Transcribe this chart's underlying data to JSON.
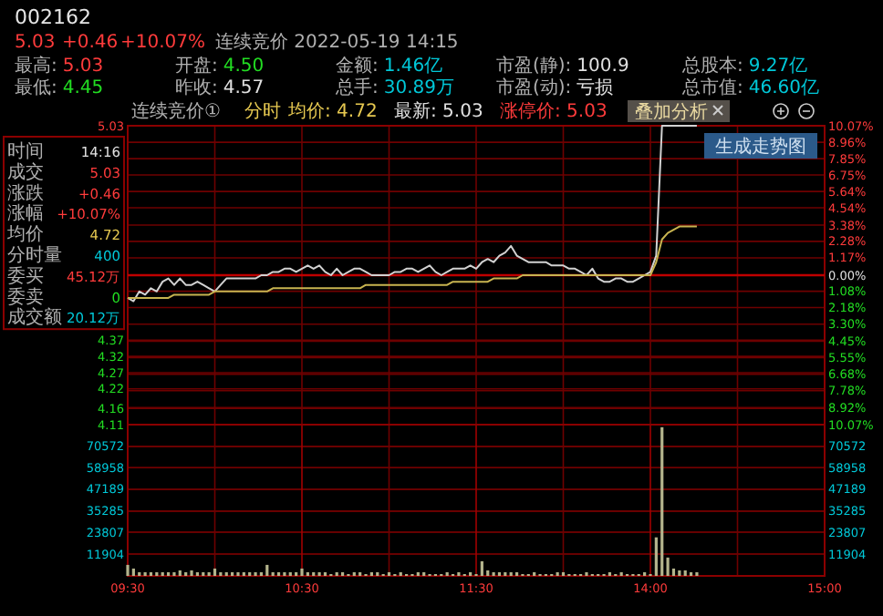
{
  "chart_data": [
    {
      "type": "other",
      "title": "002162",
      "annotations": [
        "5.03",
        "+0.46",
        "+10.07%",
        "连续竞价 2022-05-19 14:15",
        "最高:",
        "5.03",
        "开盘:",
        "4.50",
        "金额:",
        "1.46亿",
        "市盈(静):",
        "100.9",
        "总股本:",
        "9.27亿",
        "最低:",
        "4.45",
        "昨收:",
        "4.57",
        "总手:",
        "30.89万",
        "市盈(动):",
        "亏损",
        "总市值:",
        "46.60亿"
      ]
    },
    {
      "type": "line",
      "title": "连续竞价①",
      "annotations": [
        "分时",
        "均价: 4.72",
        "最新: 5.03",
        "涨停价: 5.03",
        "叠加分析",
        "生成走势图"
      ],
      "categories": [
        null,
        null,
        null,
        null,
        null,
        null,
        null,
        null,
        null,
        null,
        null,
        null,
        null,
        null,
        null,
        null,
        null,
        null,
        null,
        null,
        null,
        null,
        null,
        null,
        null,
        null,
        null,
        null,
        null,
        null,
        null,
        null,
        null,
        null,
        null,
        null,
        null,
        null,
        null,
        null,
        null,
        null,
        null,
        null,
        null,
        null,
        null,
        null,
        null,
        null,
        null,
        null,
        null,
        null,
        null,
        null,
        null,
        null,
        null,
        null,
        null,
        null,
        null,
        null,
        null,
        null,
        null,
        null,
        null,
        null,
        null,
        null,
        null,
        null,
        null,
        null,
        null,
        null,
        null,
        null,
        null,
        null,
        null,
        null,
        null,
        null,
        null,
        null,
        null,
        null,
        null,
        null,
        null,
        null,
        null,
        null,
        null,
        null,
        null,
        null,
        null,
        null,
        null,
        null,
        null,
        null,
        null,
        null,
        null,
        null,
        null,
        null,
        null,
        null,
        null,
        null,
        null,
        null,
        null,
        null,
        null
      ],
      "ref_lines": [
        {
          "axis": "y",
          "value": 4.57,
          "color": "#c00000"
        }
      ],
      "series": [
        {
          "color": "#d2d2d2",
          "values": [
            4.5,
            4.49,
            4.52,
            4.51,
            4.53,
            4.52,
            4.55,
            4.56,
            4.54,
            4.56,
            4.54,
            4.54,
            4.55,
            4.54,
            4.53,
            4.52,
            4.54,
            4.56,
            4.56,
            4.56,
            4.56,
            4.56,
            4.56,
            4.57,
            4.57,
            4.58,
            4.58,
            4.59,
            4.59,
            4.58,
            4.59,
            4.6,
            4.59,
            4.6,
            4.58,
            4.57,
            4.59,
            4.57,
            4.58,
            4.59,
            4.59,
            4.58,
            4.57,
            4.57,
            4.57,
            4.57,
            4.58,
            4.58,
            4.59,
            4.59,
            4.58,
            4.59,
            4.6,
            4.58,
            4.57,
            4.58,
            4.59,
            4.59,
            4.59,
            4.6,
            4.59,
            4.61,
            4.62,
            4.61,
            4.63,
            4.64,
            4.66,
            4.63,
            4.62,
            4.61,
            4.61,
            4.61,
            4.61,
            4.6,
            4.6,
            4.6,
            4.59,
            4.59,
            4.58,
            4.57,
            4.59,
            4.56,
            4.55,
            4.55,
            4.56,
            4.56,
            4.55,
            4.55,
            4.56,
            4.57,
            4.58,
            4.63,
            5.03,
            5.03,
            5.03,
            5.03,
            5.03,
            5.03,
            5.03,
            null,
            null,
            null,
            null,
            null,
            null,
            null,
            null,
            null,
            null,
            null,
            null,
            null,
            null,
            null,
            null,
            null,
            null,
            null,
            null,
            null,
            null
          ]
        },
        {
          "color": "#c8b450",
          "values": [
            4.5,
            4.5,
            4.5,
            4.5,
            4.5,
            4.5,
            4.5,
            4.5,
            4.51,
            4.51,
            4.51,
            4.51,
            4.51,
            4.51,
            4.51,
            4.52,
            4.52,
            4.52,
            4.52,
            4.52,
            4.52,
            4.52,
            4.52,
            4.52,
            4.52,
            4.53,
            4.53,
            4.53,
            4.53,
            4.53,
            4.53,
            4.53,
            4.53,
            4.53,
            4.53,
            4.53,
            4.53,
            4.53,
            4.53,
            4.53,
            4.53,
            4.54,
            4.54,
            4.54,
            4.54,
            4.54,
            4.54,
            4.54,
            4.54,
            4.54,
            4.54,
            4.54,
            4.54,
            4.54,
            4.54,
            4.54,
            4.55,
            4.55,
            4.55,
            4.55,
            4.55,
            4.55,
            4.55,
            4.56,
            4.56,
            4.56,
            4.56,
            4.56,
            4.57,
            4.57,
            4.57,
            4.57,
            4.57,
            4.57,
            4.57,
            4.57,
            4.57,
            4.57,
            4.57,
            4.57,
            4.57,
            4.57,
            4.57,
            4.57,
            4.57,
            4.57,
            4.57,
            4.57,
            4.57,
            4.57,
            4.57,
            4.61,
            4.68,
            4.7,
            4.71,
            4.72,
            4.72,
            4.72,
            4.72,
            null,
            null,
            null,
            null,
            null,
            null,
            null,
            null,
            null,
            null,
            null,
            null,
            null,
            null,
            null,
            null,
            null,
            null,
            null,
            null,
            null,
            null
          ]
        }
      ],
      "ylim": [
        4.11,
        5.03
      ],
      "yticks": [
        5.03,
        4.37,
        4.32,
        4.27,
        4.22,
        4.16,
        4.11
      ],
      "y2lim": [
        -10.07,
        10.07
      ],
      "y2ticks": [
        {
          "value": 10.07,
          "label": "10.07%"
        },
        {
          "value": 8.96,
          "label": "8.96%"
        },
        {
          "value": 7.85,
          "label": "7.85%"
        },
        {
          "value": 6.75,
          "label": "6.75%"
        },
        {
          "value": 5.64,
          "label": "5.64%"
        },
        {
          "value": 4.54,
          "label": "4.54%"
        },
        {
          "value": 3.38,
          "label": "3.38%"
        },
        {
          "value": 2.28,
          "label": "2.28%"
        },
        {
          "value": 1.17,
          "label": "1.17%"
        },
        {
          "value": 0,
          "label": "0.00%"
        },
        {
          "value": -1.08,
          "label": "1.08%"
        },
        {
          "value": -2.18,
          "label": "2.18%"
        },
        {
          "value": -3.3,
          "label": "3.30%"
        },
        {
          "value": -4.45,
          "label": "4.45%"
        },
        {
          "value": -5.55,
          "label": "5.55%"
        },
        {
          "value": -6.68,
          "label": "6.68%"
        },
        {
          "value": -7.78,
          "label": "7.78%"
        },
        {
          "value": -8.92,
          "label": "8.92%"
        },
        {
          "value": -10.07,
          "label": "10.07%"
        }
      ],
      "grid": true,
      "tick_labels": "y"
    },
    {
      "type": "bar",
      "color": "#b4b48c",
      "categories": [
        "09:30",
        null,
        null,
        null,
        null,
        null,
        null,
        null,
        null,
        null,
        null,
        null,
        null,
        null,
        null,
        null,
        null,
        null,
        null,
        null,
        null,
        null,
        null,
        null,
        null,
        null,
        null,
        null,
        null,
        null,
        "10:30",
        null,
        null,
        null,
        null,
        null,
        null,
        null,
        null,
        null,
        null,
        null,
        null,
        null,
        null,
        null,
        null,
        null,
        null,
        null,
        null,
        null,
        null,
        null,
        null,
        null,
        null,
        null,
        null,
        null,
        "11:30",
        null,
        null,
        null,
        null,
        null,
        null,
        null,
        null,
        null,
        null,
        null,
        null,
        null,
        null,
        null,
        null,
        null,
        null,
        null,
        null,
        null,
        null,
        null,
        null,
        null,
        null,
        null,
        null,
        null,
        "14:00",
        null,
        null,
        null,
        null,
        null,
        null,
        null,
        null,
        null,
        null,
        null,
        null,
        null,
        null,
        null,
        null,
        null,
        null,
        null,
        null,
        null,
        null,
        null,
        null,
        null,
        null,
        null,
        null,
        null,
        "15:00"
      ],
      "values": [
        6000,
        4000,
        2000,
        2000,
        2000,
        2000,
        2000,
        2000,
        2000,
        3000,
        2000,
        3000,
        2000,
        2000,
        2000,
        4000,
        2000,
        2000,
        2000,
        2000,
        2000,
        2000,
        2000,
        2000,
        6000,
        2000,
        2000,
        2000,
        2000,
        2000,
        4000,
        2000,
        2000,
        2000,
        2000,
        1000,
        2000,
        2000,
        1000,
        2000,
        2000,
        1000,
        2000,
        2000,
        1000,
        2000,
        1000,
        2000,
        1000,
        1000,
        2000,
        2000,
        1000,
        1000,
        1000,
        2000,
        1000,
        2000,
        1000,
        2000,
        1000,
        8000,
        3000,
        2000,
        2000,
        2000,
        2000,
        2000,
        1000,
        1000,
        2000,
        1000,
        1000,
        1000,
        2000,
        2000,
        1000,
        1000,
        1000,
        2000,
        1000,
        1000,
        1000,
        2000,
        1000,
        2000,
        1000,
        1000,
        1000,
        2000,
        1000,
        21000,
        81000,
        10000,
        4000,
        3000,
        3000,
        2000,
        2000,
        null,
        null,
        null,
        null,
        null,
        null,
        null,
        null,
        null,
        null,
        null,
        null,
        null,
        null,
        null,
        null,
        null,
        null,
        null,
        null,
        null,
        null
      ],
      "ylim": [
        0,
        82400
      ],
      "yticks": [
        11904,
        23807,
        35285,
        47189,
        58958,
        70572
      ],
      "y2lim": [
        0,
        82400
      ],
      "y2ticks": [
        11904,
        23807,
        35285,
        47189,
        58958,
        70572
      ],
      "grid": true
    },
    {
      "type": "other",
      "annotations": [
        "时间",
        "14:16",
        "成交",
        "5.03",
        "涨跌",
        "+0.46",
        "涨幅",
        "+10.07%",
        "均价",
        "4.72",
        "分时量",
        "400",
        "委买",
        "45.12万",
        "委卖",
        "0",
        "成交额",
        "20.12万"
      ]
    }
  ]
}
